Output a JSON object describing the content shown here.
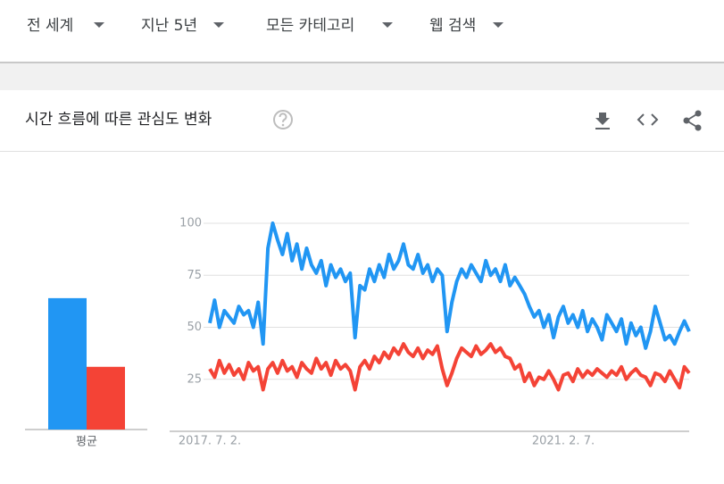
{
  "filters": [
    "전 세계",
    "지난 5년",
    "모든 카테고리",
    "웹 검색"
  ],
  "section_title": "시간 흐름에 따른 관심도 변화",
  "chart_data": [
    {
      "type": "bar",
      "categories": [
        "평균"
      ],
      "ylim": [
        0,
        100
      ],
      "series": [
        {
          "color": "#2196f3",
          "values": [
            64
          ]
        },
        {
          "color": "#f44336",
          "values": [
            31
          ]
        }
      ]
    },
    {
      "type": "line",
      "ylim": [
        0,
        100
      ],
      "yticks": [
        25,
        50,
        75,
        100
      ],
      "grid": true,
      "categories": [
        "2017. 7. 2.",
        null,
        null,
        null,
        null,
        null,
        null,
        null,
        null,
        null,
        null,
        null,
        null,
        null,
        null,
        null,
        null,
        null,
        null,
        null,
        null,
        null,
        null,
        null,
        null,
        null,
        null,
        null,
        null,
        null,
        null,
        null,
        null,
        null,
        null,
        null,
        null,
        null,
        null,
        null,
        null,
        null,
        null,
        null,
        null,
        null,
        null,
        null,
        null,
        null,
        null,
        null,
        null,
        null,
        null,
        null,
        null,
        null,
        null,
        null,
        null,
        null,
        null,
        null,
        null,
        null,
        null,
        null,
        null,
        null,
        null,
        null,
        null,
        "2021. 2. 7.",
        null,
        null,
        null,
        null,
        null,
        null,
        null,
        null,
        null,
        null,
        null,
        null,
        null,
        null,
        null,
        null,
        null,
        null,
        null,
        null,
        null,
        null,
        null,
        null,
        null,
        null
      ],
      "series": [
        {
          "color": "#2196f3",
          "values": [
            52,
            63,
            50,
            58,
            55,
            52,
            60,
            56,
            58,
            50,
            62,
            42,
            88,
            100,
            92,
            85,
            95,
            82,
            90,
            78,
            88,
            80,
            76,
            82,
            70,
            80,
            74,
            78,
            72,
            76,
            45,
            70,
            68,
            78,
            72,
            80,
            74,
            85,
            78,
            82,
            90,
            80,
            78,
            85,
            76,
            80,
            72,
            78,
            75,
            48,
            62,
            72,
            78,
            74,
            80,
            76,
            72,
            82,
            75,
            78,
            72,
            80,
            70,
            74,
            70,
            66,
            60,
            55,
            58,
            50,
            56,
            45,
            55,
            60,
            52,
            56,
            50,
            58,
            48,
            54,
            50,
            44,
            56,
            52,
            48,
            54,
            42,
            52,
            46,
            50,
            40,
            48,
            60,
            52,
            44,
            46,
            42,
            48,
            53,
            48
          ]
        },
        {
          "color": "#f44336",
          "values": [
            30,
            26,
            34,
            28,
            32,
            27,
            30,
            25,
            33,
            29,
            31,
            20,
            30,
            33,
            28,
            34,
            29,
            31,
            26,
            33,
            30,
            28,
            35,
            30,
            33,
            27,
            34,
            30,
            32,
            29,
            20,
            31,
            34,
            30,
            36,
            33,
            38,
            35,
            40,
            37,
            42,
            38,
            36,
            40,
            35,
            39,
            37,
            41,
            30,
            22,
            28,
            35,
            40,
            38,
            36,
            41,
            37,
            39,
            42,
            38,
            40,
            36,
            35,
            30,
            32,
            24,
            28,
            22,
            26,
            25,
            29,
            25,
            20,
            27,
            28,
            24,
            30,
            26,
            29,
            27,
            30,
            28,
            26,
            29,
            27,
            31,
            25,
            28,
            30,
            27,
            26,
            22,
            28,
            27,
            24,
            29,
            25,
            21,
            31,
            28
          ]
        }
      ]
    }
  ]
}
